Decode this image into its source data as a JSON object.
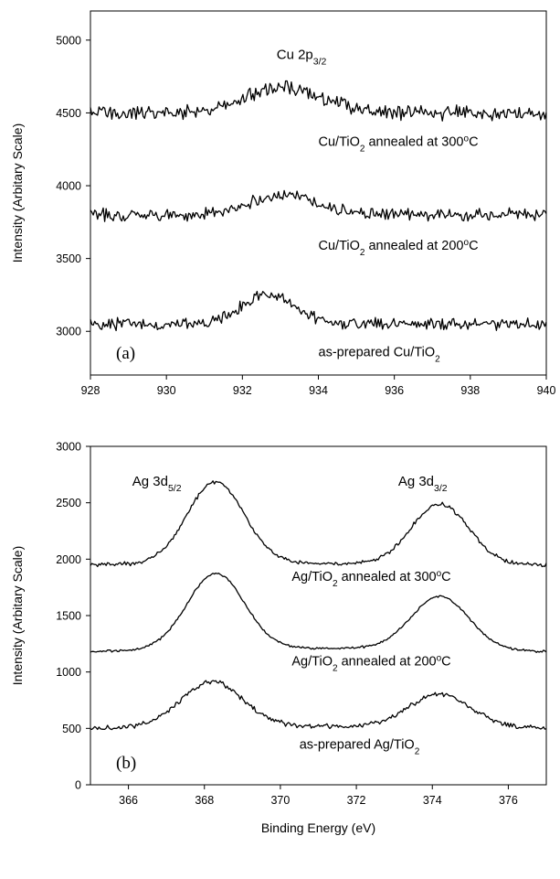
{
  "chart_data": [
    {
      "panel_label": "(a)",
      "type": "line",
      "xlabel": "",
      "ylabel": "Intensity (Arbitary Scale)",
      "xlim": [
        928,
        940
      ],
      "ylim": [
        2700,
        5200
      ],
      "xticks": [
        928,
        930,
        932,
        934,
        936,
        938,
        940
      ],
      "yticks": [
        3000,
        3500,
        4000,
        4500,
        5000
      ],
      "peak_label": {
        "main": "Cu 2p",
        "sub": "3/2",
        "x": 932.9,
        "y": 4870
      },
      "series": [
        {
          "name": "Cu/TiO2 annealed at 300oC",
          "baseline": 4500,
          "peaks": [
            {
              "center": 933.1,
              "height": 180,
              "width": 1.0
            }
          ],
          "noise": 60,
          "label": {
            "pre": "Cu/TiO",
            "sub": "2",
            "mid": " annealed at 300",
            "sup": "o",
            "post": "C",
            "x": 934.0,
            "y": 4275
          }
        },
        {
          "name": "Cu/TiO2 annealed at 200oC",
          "baseline": 3800,
          "peaks": [
            {
              "center": 933.1,
              "height": 140,
              "width": 0.9
            }
          ],
          "noise": 50,
          "label": {
            "pre": "Cu/TiO",
            "sub": "2",
            "mid": " annealed at 200",
            "sup": "o",
            "post": "C",
            "x": 934.0,
            "y": 3560
          }
        },
        {
          "name": "as-prepared Cu/TiO2",
          "baseline": 3050,
          "peaks": [
            {
              "center": 932.7,
              "height": 200,
              "width": 0.7
            }
          ],
          "noise": 50,
          "label": {
            "pre": "as-prepared Cu/TiO",
            "sub": "2",
            "mid": "",
            "sup": "",
            "post": "",
            "x": 934.0,
            "y": 2830
          }
        }
      ]
    },
    {
      "panel_label": "(b)",
      "type": "line",
      "xlabel": "Binding Energy (eV)",
      "ylabel": "Intensity (Arbitary Scale)",
      "xlim": [
        365,
        377
      ],
      "ylim": [
        0,
        3000
      ],
      "xticks": [
        366,
        368,
        370,
        372,
        374,
        376
      ],
      "yticks": [
        0,
        500,
        1000,
        1500,
        2000,
        2500,
        3000
      ],
      "peak_labels": [
        {
          "main": "Ag 3d",
          "sub": "5/2",
          "x": 366.1,
          "y": 2650
        },
        {
          "main": "Ag 3d",
          "sub": "3/2",
          "x": 373.1,
          "y": 2650
        }
      ],
      "series": [
        {
          "name": "Ag/TiO2 annealed at 300oC",
          "baseline": 1950,
          "baseline_mid": 1960,
          "peaks": [
            {
              "center": 368.3,
              "height": 730,
              "width": 0.75
            },
            {
              "center": 374.2,
              "height": 530,
              "width": 0.75
            }
          ],
          "noise": 22,
          "label": {
            "pre": "Ag/TiO",
            "sub": "2",
            "mid": " annealed at 300",
            "sup": "o",
            "post": "C",
            "x": 370.3,
            "y": 1810
          }
        },
        {
          "name": "Ag/TiO2 annealed at 200oC",
          "baseline": 1180,
          "baseline_mid": 1210,
          "peaks": [
            {
              "center": 368.3,
              "height": 670,
              "width": 0.75
            },
            {
              "center": 374.2,
              "height": 470,
              "width": 0.75
            }
          ],
          "noise": 12,
          "label": {
            "pre": "Ag/TiO",
            "sub": "2",
            "mid": " annealed at 200",
            "sup": "o",
            "post": "C",
            "x": 370.3,
            "y": 1060
          }
        },
        {
          "name": "as-prepared Ag/TiO2",
          "baseline": 500,
          "baseline_mid": 520,
          "peaks": [
            {
              "center": 368.2,
              "height": 400,
              "width": 0.8
            },
            {
              "center": 374.2,
              "height": 290,
              "width": 0.8
            }
          ],
          "noise": 26,
          "label": {
            "pre": "as-prepared Ag/TiO",
            "sub": "2",
            "mid": "",
            "sup": "",
            "post": "",
            "x": 370.5,
            "y": 320
          }
        }
      ]
    }
  ]
}
